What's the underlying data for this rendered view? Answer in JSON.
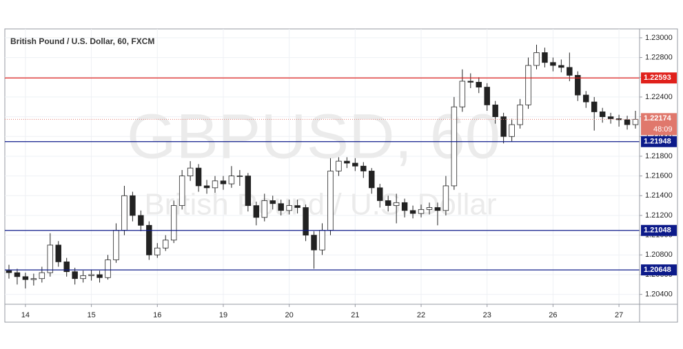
{
  "chart_data": {
    "type": "candlestick",
    "title": "British Pound / U.S. Dollar, 60, FXCM",
    "watermark": "GBPUSD, 60",
    "watermark_subtitle": "British Pound / U.S. Dollar",
    "categories": [
      null,
      null,
      "14",
      null,
      null,
      null,
      null,
      null,
      null,
      null,
      "15",
      null,
      null,
      null,
      null,
      null,
      null,
      null,
      "16",
      null,
      null,
      null,
      null,
      null,
      null,
      null,
      "19",
      null,
      null,
      null,
      null,
      null,
      null,
      null,
      "20",
      null,
      null,
      null,
      null,
      null,
      null,
      null,
      "21",
      null,
      null,
      null,
      null,
      null,
      null,
      null,
      "22",
      null,
      null,
      null,
      null,
      null,
      null,
      null,
      "23",
      null,
      null,
      null,
      null,
      null,
      null,
      null,
      "26",
      null,
      null,
      null,
      null,
      null,
      null,
      null,
      "27",
      null,
      null
    ],
    "open": [
      1.2064,
      1.2062,
      1.2058,
      1.2055,
      1.2056,
      1.2062,
      1.209,
      1.2073,
      1.2063,
      1.2056,
      1.2059,
      1.206,
      1.2057,
      1.2075,
      1.2105,
      1.214,
      1.212,
      1.211,
      1.208,
      1.2087,
      1.2095,
      1.213,
      1.216,
      1.2168,
      1.215,
      1.2148,
      1.2155,
      1.2152,
      1.216,
      1.216,
      1.213,
      1.2118,
      1.2135,
      1.2132,
      1.2125,
      1.213,
      1.2128,
      1.21,
      1.2085,
      1.2105,
      1.2165,
      1.2175,
      1.2173,
      1.217,
      1.2165,
      1.2148,
      1.2135,
      1.213,
      1.2133,
      1.2125,
      1.2122,
      1.2126,
      1.2128,
      1.2125,
      1.215,
      1.223,
      1.2256,
      1.2255,
      1.225,
      1.2232,
      1.222,
      1.22,
      1.2212,
      1.2232,
      1.2272,
      1.2285,
      1.2275,
      1.2272,
      1.227,
      1.2262,
      1.2242,
      1.2235,
      1.2225,
      1.222,
      1.2218,
      1.2217,
      1.2212
    ],
    "high": [
      1.207,
      1.2066,
      1.2062,
      1.2061,
      1.2068,
      1.2102,
      1.2094,
      1.2077,
      1.2067,
      1.2064,
      1.2065,
      1.2064,
      1.208,
      1.2112,
      1.215,
      1.2144,
      1.2125,
      1.2114,
      1.2092,
      1.21,
      1.2135,
      1.2166,
      1.2175,
      1.2172,
      1.2156,
      1.216,
      1.216,
      1.217,
      1.2166,
      1.2163,
      1.2134,
      1.2142,
      1.214,
      1.2136,
      1.2136,
      1.2136,
      1.2131,
      1.2104,
      1.2112,
      1.2178,
      1.2179,
      1.2179,
      1.2178,
      1.2174,
      1.2168,
      1.2152,
      1.214,
      1.2142,
      1.2137,
      1.213,
      1.2131,
      1.2133,
      1.2133,
      1.216,
      1.224,
      1.2268,
      1.2264,
      1.226,
      1.2254,
      1.2236,
      1.2224,
      1.2218,
      1.2238,
      1.228,
      1.2293,
      1.229,
      1.228,
      1.2278,
      1.2285,
      1.2266,
      1.2246,
      1.224,
      1.2229,
      1.2224,
      1.2222,
      1.2221,
      1.2226
    ],
    "low": [
      1.2056,
      1.205,
      1.2046,
      1.2049,
      1.2052,
      1.2058,
      1.2068,
      1.2058,
      1.205,
      1.2052,
      1.2054,
      1.2052,
      1.2055,
      1.2072,
      1.21,
      1.2114,
      1.2104,
      1.2075,
      1.2077,
      1.2084,
      1.2092,
      1.2126,
      1.2155,
      1.2144,
      1.2142,
      1.2143,
      1.2146,
      1.2148,
      1.215,
      1.2124,
      1.211,
      1.2114,
      1.2126,
      1.212,
      1.2121,
      1.2122,
      1.2094,
      1.2066,
      1.208,
      1.21,
      1.216,
      1.2168,
      1.2165,
      1.2158,
      1.2142,
      1.2128,
      1.2124,
      1.2112,
      1.2118,
      1.2117,
      1.2118,
      1.2121,
      1.211,
      1.212,
      1.2146,
      1.2225,
      1.2249,
      1.2244,
      1.2226,
      1.2213,
      1.2193,
      1.2195,
      1.2208,
      1.2228,
      1.2268,
      1.227,
      1.2266,
      1.2265,
      1.2256,
      1.2236,
      1.2229,
      1.2206,
      1.2214,
      1.2213,
      1.221,
      1.2207,
      1.2208
    ],
    "close": [
      1.2062,
      1.2058,
      1.2055,
      1.2056,
      1.2062,
      1.209,
      1.2073,
      1.2063,
      1.2056,
      1.2059,
      1.206,
      1.2057,
      1.2075,
      1.2105,
      1.214,
      1.212,
      1.211,
      1.208,
      1.2087,
      1.2095,
      1.213,
      1.216,
      1.2168,
      1.215,
      1.2148,
      1.2155,
      1.2152,
      1.216,
      1.216,
      1.213,
      1.2118,
      1.2135,
      1.2132,
      1.2125,
      1.213,
      1.2128,
      1.21,
      1.2085,
      1.2105,
      1.2165,
      1.2175,
      1.2173,
      1.217,
      1.2165,
      1.2148,
      1.2135,
      1.213,
      1.2133,
      1.2125,
      1.2122,
      1.2126,
      1.2128,
      1.2125,
      1.215,
      1.223,
      1.2256,
      1.2255,
      1.225,
      1.2232,
      1.222,
      1.22,
      1.2212,
      1.2232,
      1.2272,
      1.2285,
      1.2275,
      1.2272,
      1.227,
      1.2262,
      1.2242,
      1.2235,
      1.2225,
      1.222,
      1.2218,
      1.2217,
      1.2212,
      1.22174
    ],
    "up_color": "#ffffff",
    "down_color": "#222222",
    "wick_color": "#222222",
    "ylim": [
      1.203,
      1.2309
    ],
    "yticks": [
      {
        "value": 1.204,
        "label": "1.20400"
      },
      {
        "value": 1.206,
        "label": "1.20600"
      },
      {
        "value": 1.208,
        "label": "1.20800"
      },
      {
        "value": 1.21,
        "label": "1.21000"
      },
      {
        "value": 1.212,
        "label": "1.21200"
      },
      {
        "value": 1.214,
        "label": "1.21400"
      },
      {
        "value": 1.216,
        "label": "1.21600"
      },
      {
        "value": 1.218,
        "label": "1.21800"
      },
      {
        "value": 1.22,
        "label": "1.22000"
      },
      {
        "value": 1.222,
        "label": "1.22200"
      },
      {
        "value": 1.224,
        "label": "1.22400"
      },
      {
        "value": 1.226,
        "label": "1.22600"
      },
      {
        "value": 1.228,
        "label": "1.22800"
      },
      {
        "value": 1.23,
        "label": "1.23000"
      }
    ],
    "grid": true,
    "levels": [
      {
        "value": 1.22593,
        "label": "1.22593",
        "color": "#e0201b"
      },
      {
        "value": 1.21948,
        "label": "1.21948",
        "color": "#0c1a8a"
      },
      {
        "value": 1.21048,
        "label": "1.21048",
        "color": "#0c1a8a"
      },
      {
        "value": 1.20648,
        "label": "1.20648",
        "color": "#0c1a8a"
      }
    ],
    "current_price": {
      "value": 1.22174,
      "label": "1.22174",
      "countdown": "48:09",
      "color": "#e0786c"
    }
  }
}
